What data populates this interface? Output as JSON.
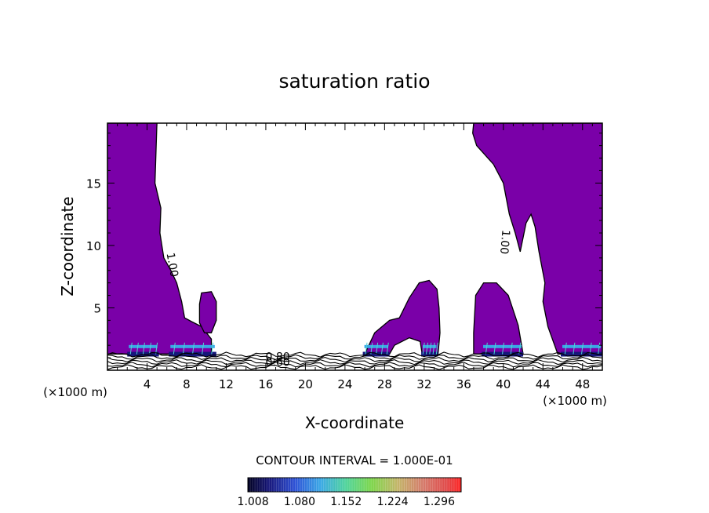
{
  "chart_data": {
    "type": "contour",
    "title": "saturation ratio",
    "xlabel": "X-coordinate",
    "ylabel": "Z-coordinate",
    "x_unit_left": "(×1000 m)",
    "x_unit_right": "(×1000 m)",
    "xlim": [
      0,
      50
    ],
    "ylim": [
      0,
      19.8
    ],
    "x_ticks": [
      4,
      8,
      12,
      16,
      20,
      24,
      28,
      32,
      36,
      40,
      44,
      48
    ],
    "y_ticks": [
      5,
      10,
      15
    ],
    "contour_labels": [
      {
        "text": "1.00",
        "x": 6.2,
        "z": 8.4,
        "rotate": 80
      },
      {
        "text": "1.00",
        "x": 39.8,
        "z": 10.3,
        "rotate": 95
      },
      {
        "text": "0.80",
        "x": 17.2,
        "z": 0.8,
        "rotate": 0
      },
      {
        "text": "0.60",
        "x": 17.2,
        "z": 0.35,
        "rotate": 0
      }
    ],
    "fill_color": "#7a00a8",
    "footer": "CONTOUR INTERVAL = 1.000E-01",
    "colorbar": {
      "ticks": [
        "1.008",
        "1.080",
        "1.152",
        "1.224",
        "1.296"
      ],
      "min": 1.0,
      "max": 1.33
    },
    "supersaturated_regions": [
      {
        "name": "left wall",
        "outline": [
          [
            0,
            19.8
          ],
          [
            5.0,
            19.8
          ],
          [
            4.8,
            15
          ],
          [
            5.4,
            13
          ],
          [
            5.3,
            11
          ],
          [
            5.7,
            9
          ],
          [
            6.4,
            8
          ],
          [
            7.0,
            7.0
          ],
          [
            7.5,
            5.5
          ],
          [
            7.8,
            4.2
          ],
          [
            8.5,
            3.9
          ],
          [
            9.5,
            3.5
          ],
          [
            10.5,
            2.5
          ],
          [
            10.5,
            1.3
          ],
          [
            0,
            1.3
          ]
        ]
      },
      {
        "name": "blob 1",
        "outline": [
          [
            9.5,
            6.2
          ],
          [
            10.5,
            6.3
          ],
          [
            11.0,
            5.5
          ],
          [
            11.0,
            4.0
          ],
          [
            10.5,
            3.0
          ],
          [
            9.8,
            3.0
          ],
          [
            9.3,
            3.8
          ],
          [
            9.3,
            5.3
          ]
        ]
      },
      {
        "name": "blob 2",
        "outline": [
          [
            29.5,
            4.2
          ],
          [
            30.5,
            5.8
          ],
          [
            31.5,
            7.0
          ],
          [
            32.5,
            7.2
          ],
          [
            33.3,
            6.5
          ],
          [
            33.5,
            5.0
          ],
          [
            33.6,
            3.0
          ],
          [
            33.4,
            1.3
          ],
          [
            31.8,
            1.3
          ],
          [
            31.6,
            2.3
          ],
          [
            30.5,
            2.6
          ],
          [
            29.0,
            2.0
          ],
          [
            28.5,
            1.3
          ],
          [
            26.0,
            1.3
          ],
          [
            27.0,
            3.0
          ],
          [
            28.5,
            4.0
          ]
        ]
      },
      {
        "name": "blob 3",
        "outline": [
          [
            37.2,
            6.0
          ],
          [
            38.0,
            7.0
          ],
          [
            39.3,
            7.0
          ],
          [
            40.5,
            6.0
          ],
          [
            41.0,
            4.8
          ],
          [
            41.5,
            3.6
          ],
          [
            42.0,
            1.3
          ],
          [
            37.0,
            1.3
          ],
          [
            37.0,
            3.0
          ]
        ]
      },
      {
        "name": "right wall",
        "outline": [
          [
            37.0,
            19.8
          ],
          [
            50,
            19.8
          ],
          [
            50,
            1.3
          ],
          [
            45.5,
            1.3
          ],
          [
            44.5,
            3.5
          ],
          [
            44.0,
            5.5
          ],
          [
            44.2,
            7.0
          ],
          [
            43.6,
            9.5
          ],
          [
            43.2,
            11.5
          ],
          [
            42.8,
            12.5
          ],
          [
            42.3,
            11.8
          ],
          [
            41.7,
            9.5
          ],
          [
            41.2,
            11.0
          ],
          [
            40.6,
            12.5
          ],
          [
            40.0,
            15.0
          ],
          [
            39.0,
            16.5
          ],
          [
            37.3,
            18.0
          ],
          [
            36.9,
            19.0
          ]
        ]
      }
    ],
    "hotspots": [
      {
        "x_start": 2.0,
        "x_end": 5.2
      },
      {
        "x_start": 6.2,
        "x_end": 11.0
      },
      {
        "x_start": 25.8,
        "x_end": 28.5
      },
      {
        "x_start": 31.7,
        "x_end": 33.4
      },
      {
        "x_start": 37.8,
        "x_end": 42.0
      },
      {
        "x_start": 45.8,
        "x_end": 50.0
      }
    ]
  }
}
